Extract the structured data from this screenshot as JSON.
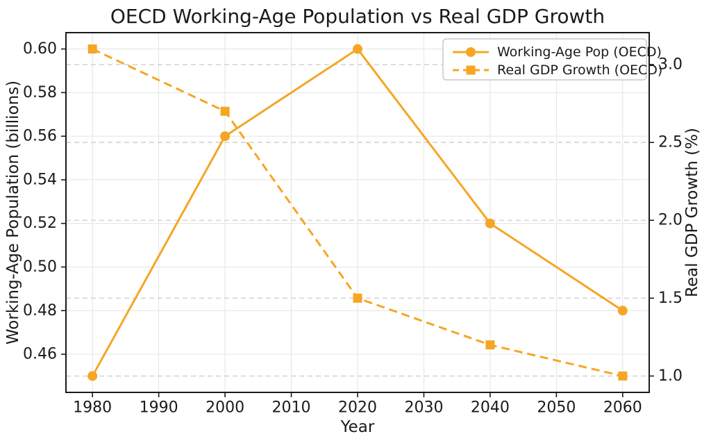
{
  "chart_data": {
    "type": "line",
    "title": "OECD Working-Age Population vs Real GDP Growth",
    "xlabel": "Year",
    "ylabel_left": "Working-Age Population (billions)",
    "ylabel_right": "Real GDP Growth (%)",
    "x": [
      1980,
      2000,
      2020,
      2040,
      2060
    ],
    "series": [
      {
        "name": "Working-Age Pop (OECD)",
        "axis": "left",
        "marker": "circle",
        "linestyle": "solid",
        "values": [
          0.45,
          0.56,
          0.6,
          0.52,
          0.48
        ]
      },
      {
        "name": "Real GDP Growth (OECD)",
        "axis": "right",
        "marker": "square",
        "linestyle": "dashed",
        "values": [
          3.1,
          2.7,
          1.5,
          1.2,
          1.0
        ]
      }
    ],
    "x_tick_labels": [
      "1980",
      "1990",
      "2000",
      "2010",
      "2020",
      "2030",
      "2040",
      "2050",
      "2060"
    ],
    "y_left_tick_labels": [
      "0.46",
      "0.48",
      "0.50",
      "0.52",
      "0.54",
      "0.56",
      "0.58",
      "0.60"
    ],
    "y_right_tick_labels": [
      "1.0",
      "1.5",
      "2.0",
      "2.5",
      "3.0"
    ],
    "xlim": [
      1976,
      2064
    ],
    "ylim_left": [
      0.4425,
      0.6075
    ],
    "ylim_right": [
      0.895,
      3.205
    ],
    "color": "#F5A623",
    "grid": true,
    "legend_position": "upper right"
  }
}
